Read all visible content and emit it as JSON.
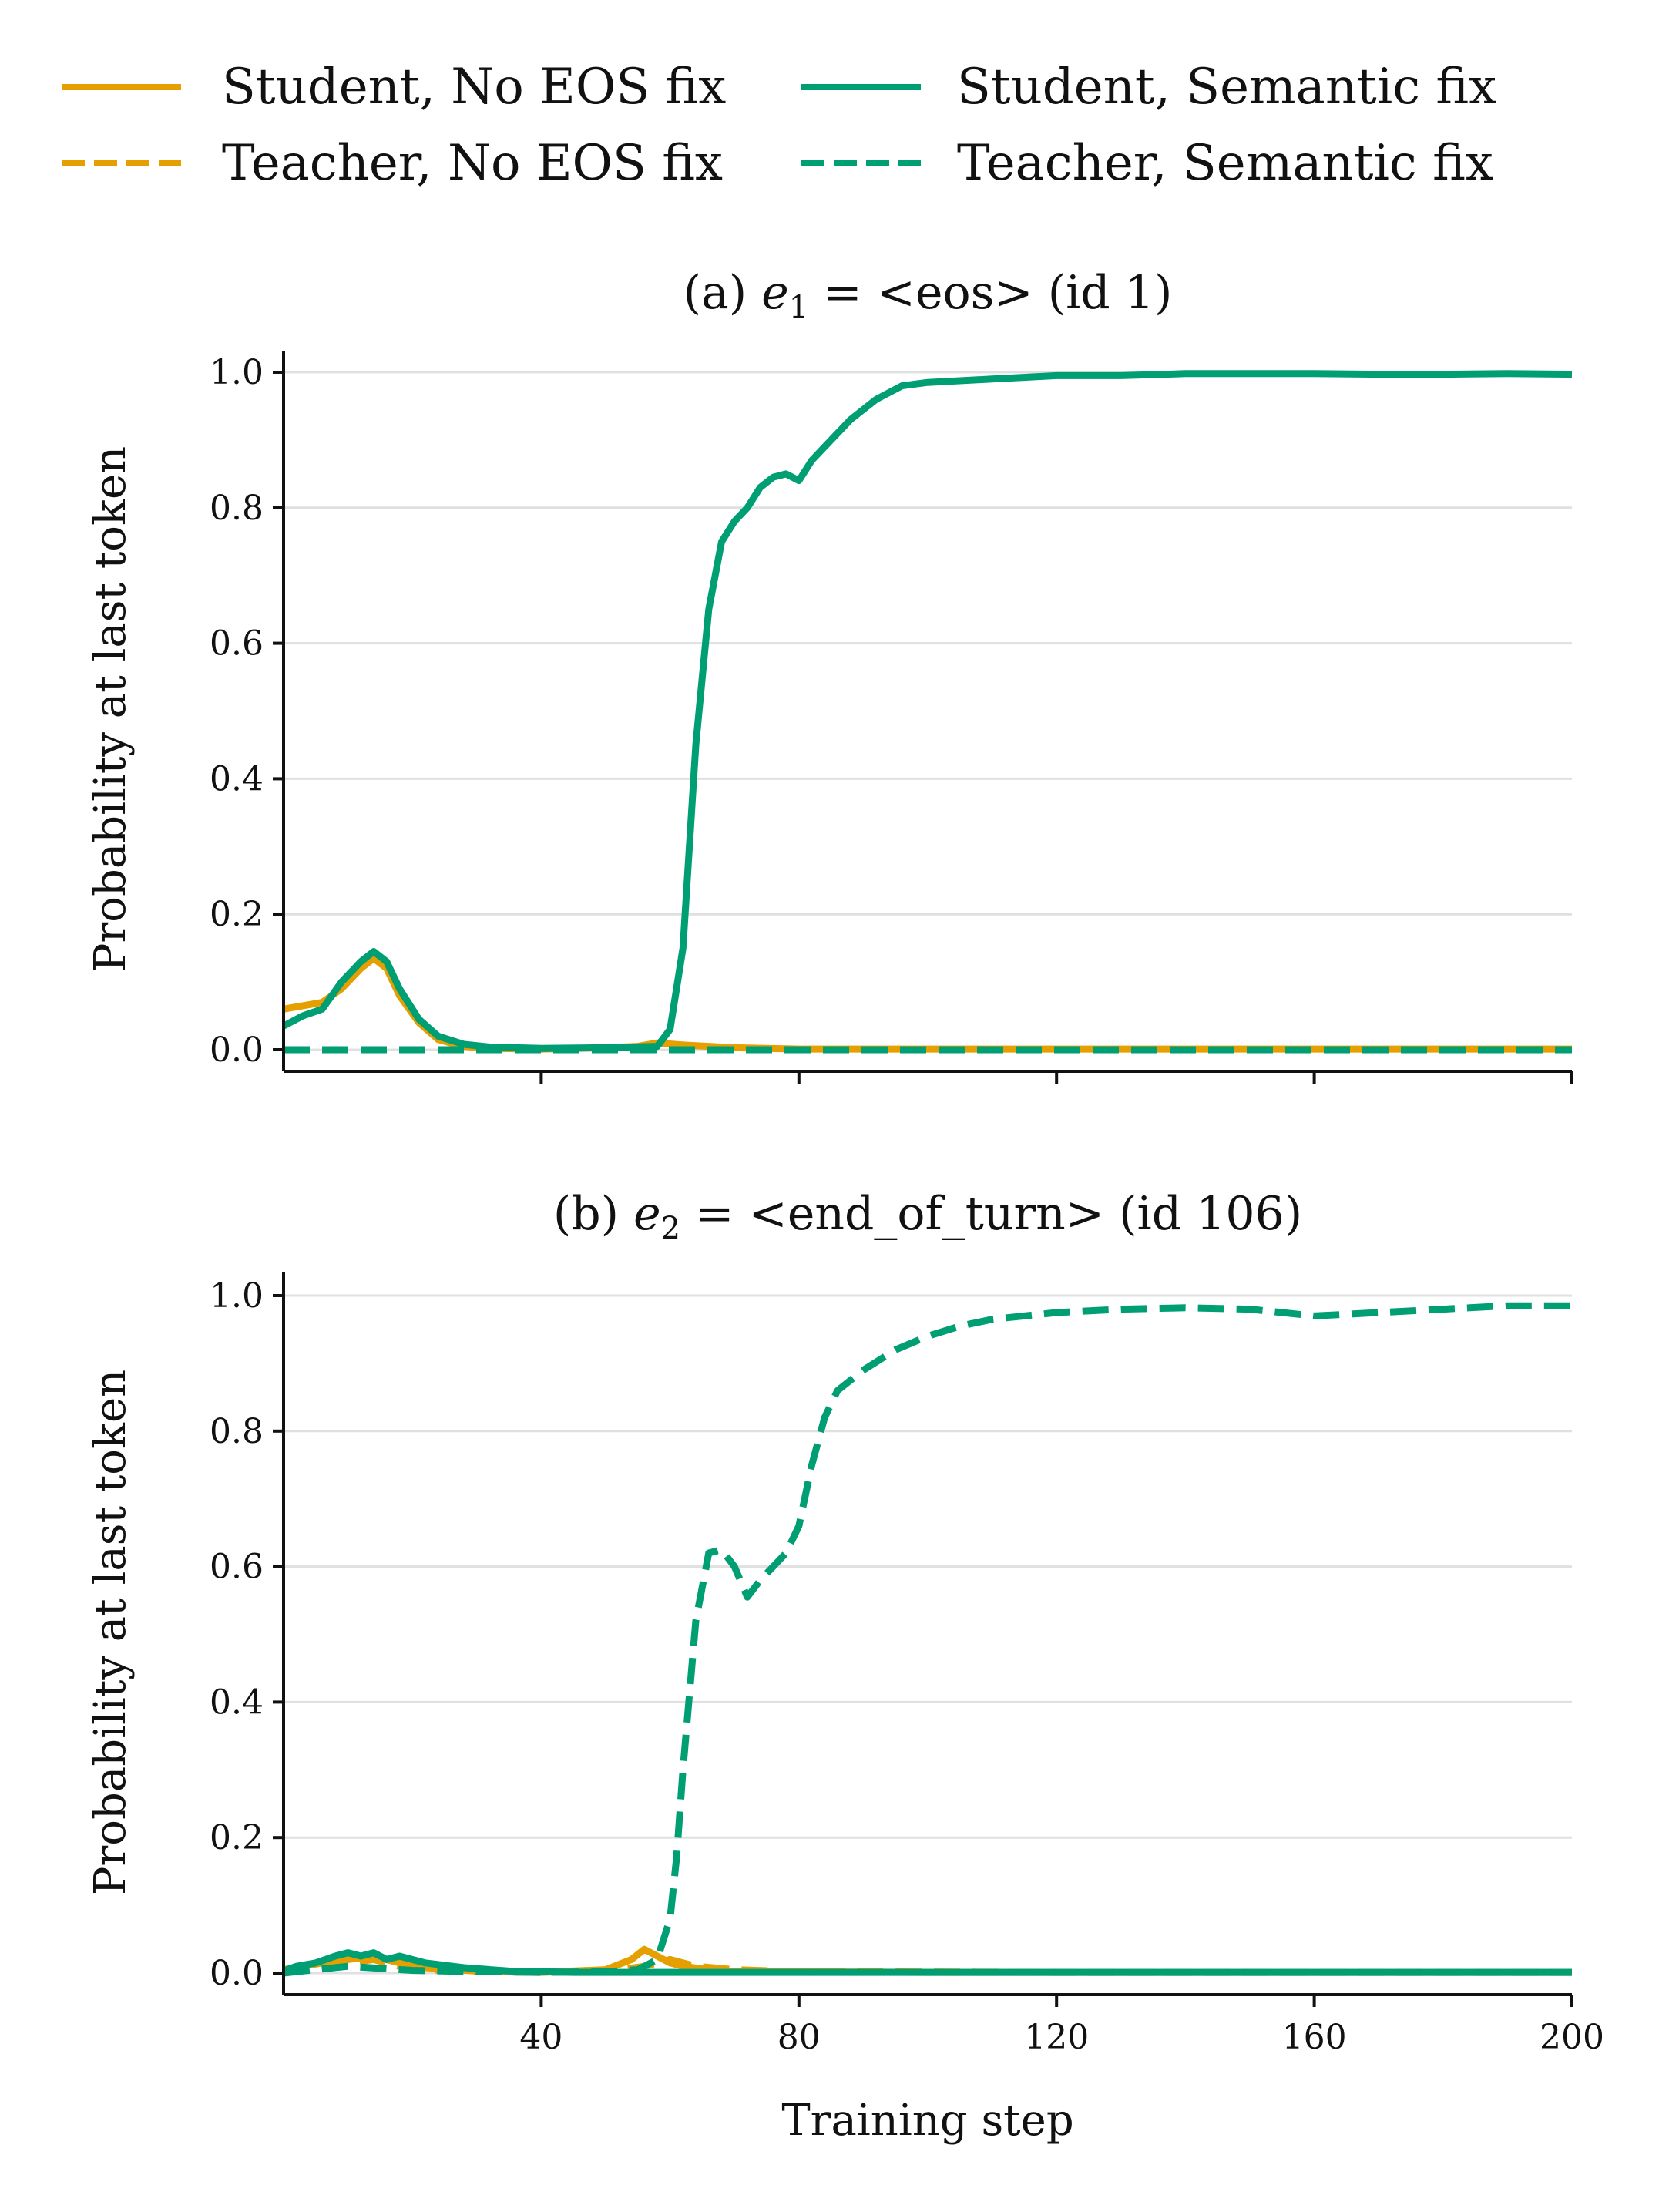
{
  "legend": {
    "items": [
      {
        "label": "Student, No EOS fix",
        "color": "#E69F00",
        "style": "solid"
      },
      {
        "label": "Teacher, No EOS fix",
        "color": "#E69F00",
        "style": "dashed"
      },
      {
        "label": "Student, Semantic fix",
        "color": "#009E73",
        "style": "solid"
      },
      {
        "label": "Teacher, Semantic fix",
        "color": "#009E73",
        "style": "dashed"
      }
    ]
  },
  "shared": {
    "xlabel": "Training step",
    "ylabel": "Probability at last token",
    "x_ticks": [
      "40",
      "80",
      "120",
      "160",
      "200"
    ],
    "y_ticks": [
      "0.0",
      "0.2",
      "0.4",
      "0.6",
      "0.8",
      "1.0"
    ],
    "colors": {
      "no_eos": "#E69F00",
      "semantic": "#009E73",
      "grid": "#e0e0e0"
    }
  },
  "chart_data": [
    {
      "type": "line",
      "panel": "a",
      "title_prefix": "(a) ",
      "title_var": "e",
      "title_sub": "1",
      "title_suffix": " = <eos>  (id 1)",
      "xlim": [
        0,
        200
      ],
      "ylim": [
        0,
        1
      ],
      "grid": true,
      "series": [
        {
          "name": "Student, No EOS fix",
          "color": "#E69F00",
          "style": "solid",
          "x": [
            0,
            3,
            6,
            9,
            12,
            14,
            16,
            18,
            21,
            24,
            28,
            32,
            40,
            50,
            55,
            58,
            62,
            70,
            80,
            100,
            150,
            200
          ],
          "y": [
            0.06,
            0.065,
            0.07,
            0.09,
            0.12,
            0.135,
            0.12,
            0.08,
            0.04,
            0.015,
            0.005,
            0.002,
            0.001,
            0.003,
            0.005,
            0.01,
            0.007,
            0.003,
            0.001,
            0.001,
            0.001,
            0.001
          ]
        },
        {
          "name": "Teacher, No EOS fix",
          "color": "#E69F00",
          "style": "dashed",
          "x": [
            0,
            200
          ],
          "y": [
            0.0,
            0.0
          ]
        },
        {
          "name": "Student, Semantic fix",
          "color": "#009E73",
          "style": "solid",
          "x": [
            0,
            3,
            6,
            9,
            12,
            14,
            16,
            18,
            21,
            24,
            28,
            32,
            40,
            50,
            58,
            60,
            62,
            64,
            66,
            68,
            70,
            72,
            74,
            76,
            78,
            80,
            82,
            85,
            88,
            92,
            96,
            100,
            110,
            120,
            130,
            140,
            150,
            160,
            170,
            180,
            190,
            200
          ],
          "y": [
            0.035,
            0.05,
            0.06,
            0.1,
            0.13,
            0.145,
            0.13,
            0.09,
            0.045,
            0.02,
            0.008,
            0.004,
            0.002,
            0.003,
            0.005,
            0.03,
            0.15,
            0.45,
            0.65,
            0.75,
            0.78,
            0.8,
            0.83,
            0.845,
            0.85,
            0.84,
            0.87,
            0.9,
            0.93,
            0.96,
            0.98,
            0.985,
            0.99,
            0.995,
            0.995,
            0.998,
            0.998,
            0.998,
            0.997,
            0.997,
            0.998,
            0.997
          ]
        },
        {
          "name": "Teacher, Semantic fix",
          "color": "#009E73",
          "style": "dashed",
          "x": [
            0,
            200
          ],
          "y": [
            0.0,
            0.0
          ]
        }
      ]
    },
    {
      "type": "line",
      "panel": "b",
      "title_prefix": "(b) ",
      "title_var": "e",
      "title_sub": "2",
      "title_suffix": " = <end_of_turn>  (id 106)",
      "xlim": [
        0,
        200
      ],
      "ylim": [
        0,
        1
      ],
      "grid": true,
      "series": [
        {
          "name": "Student, No EOS fix",
          "color": "#E69F00",
          "style": "solid",
          "x": [
            0,
            3,
            6,
            10,
            14,
            18,
            22,
            30,
            40,
            50,
            54,
            56,
            58,
            60,
            62,
            66,
            70,
            100,
            150,
            200
          ],
          "y": [
            0.005,
            0.01,
            0.015,
            0.02,
            0.025,
            0.015,
            0.008,
            0.003,
            0.001,
            0.005,
            0.02,
            0.035,
            0.025,
            0.015,
            0.01,
            0.005,
            0.002,
            0.001,
            0.001,
            0.001
          ]
        },
        {
          "name": "Teacher, No EOS fix",
          "color": "#E69F00",
          "style": "dashed",
          "x": [
            0,
            3,
            6,
            10,
            14,
            18,
            22,
            30,
            40,
            50,
            56,
            60,
            64,
            70,
            80,
            120,
            200
          ],
          "y": [
            0.0,
            0.005,
            0.01,
            0.015,
            0.02,
            0.01,
            0.005,
            0.002,
            0.001,
            0.002,
            0.01,
            0.02,
            0.01,
            0.005,
            0.002,
            0.001,
            0.001
          ]
        },
        {
          "name": "Student, Semantic fix",
          "color": "#009E73",
          "style": "solid",
          "x": [
            0,
            2,
            5,
            8,
            10,
            12,
            14,
            16,
            18,
            22,
            28,
            35,
            45,
            60,
            80,
            120,
            160,
            200
          ],
          "y": [
            0.003,
            0.01,
            0.015,
            0.025,
            0.03,
            0.025,
            0.03,
            0.02,
            0.025,
            0.015,
            0.008,
            0.003,
            0.001,
            0.001,
            0.001,
            0.001,
            0.001,
            0.001
          ]
        },
        {
          "name": "Teacher, Semantic fix",
          "color": "#009E73",
          "style": "dashed",
          "x": [
            0,
            5,
            10,
            20,
            30,
            40,
            50,
            55,
            58,
            60,
            61,
            62,
            64,
            66,
            68,
            70,
            72,
            74,
            76,
            78,
            80,
            82,
            84,
            86,
            90,
            95,
            100,
            105,
            110,
            120,
            130,
            140,
            150,
            160,
            170,
            180,
            190,
            200
          ],
          "y": [
            0.0,
            0.005,
            0.01,
            0.004,
            0.002,
            0.001,
            0.002,
            0.005,
            0.02,
            0.08,
            0.17,
            0.3,
            0.52,
            0.62,
            0.625,
            0.6,
            0.555,
            0.58,
            0.6,
            0.62,
            0.66,
            0.75,
            0.82,
            0.86,
            0.89,
            0.92,
            0.94,
            0.955,
            0.965,
            0.975,
            0.98,
            0.982,
            0.98,
            0.97,
            0.975,
            0.98,
            0.985,
            0.985
          ]
        }
      ]
    }
  ]
}
